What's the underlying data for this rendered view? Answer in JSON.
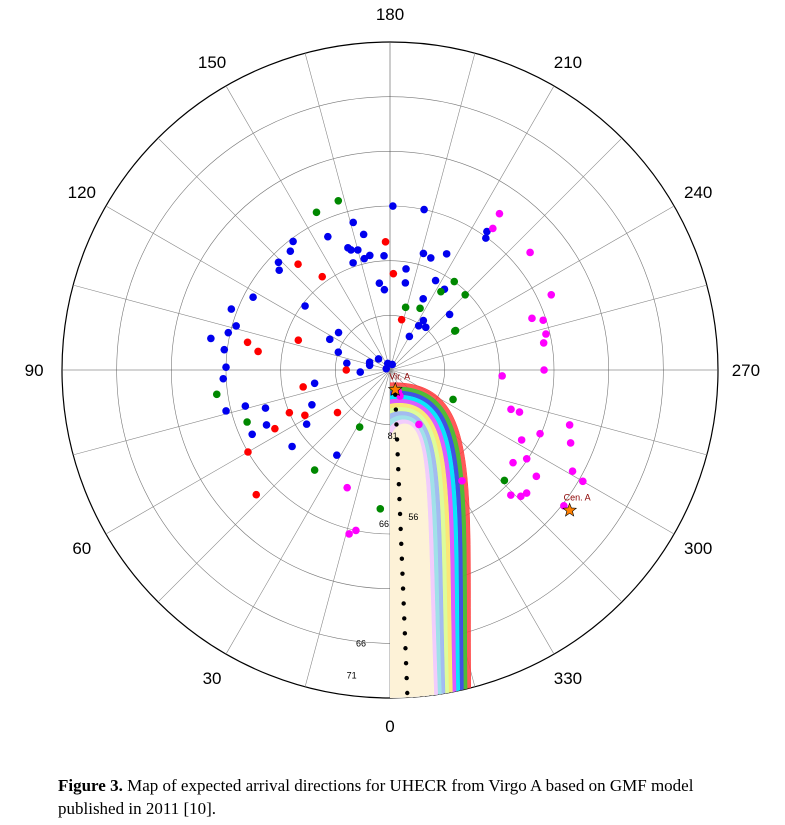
{
  "figure": {
    "caption_label": "Figure 3.",
    "caption_text": " Map of expected arrival directions for UHECR from Virgo A based on GMF model published in 2011 [10]."
  },
  "chart_data": {
    "type": "scatter",
    "coordinate_system": "polar",
    "angle_labels": [
      "0",
      "30",
      "60",
      "90",
      "120",
      "150",
      "180",
      "210",
      "240",
      "270",
      "300",
      "330"
    ],
    "angle_unit": "degrees",
    "radial_rings": 6,
    "radial_spokes_every_deg": 15,
    "grid": true,
    "series": [
      {
        "color": "#0000ee",
        "points": [
          [
            143,
            162
          ],
          [
            140,
            156
          ],
          [
            134,
            156
          ],
          [
            132,
            150
          ],
          [
            118,
            156
          ],
          [
            111,
            171
          ],
          [
            127,
            107
          ],
          [
            100,
            183
          ],
          [
            103,
            167
          ],
          [
            106,
            161
          ],
          [
            162,
            127
          ],
          [
            165,
            125
          ],
          [
            166,
            153
          ],
          [
            155,
            148
          ],
          [
            169,
            139
          ],
          [
            161,
            130
          ],
          [
            170,
            117
          ],
          [
            167,
            115
          ],
          [
            161,
            114
          ],
          [
            177,
            115
          ],
          [
            173,
            88
          ],
          [
            176,
            81
          ],
          [
            181,
            165
          ],
          [
            192,
            165
          ],
          [
            189,
            103
          ],
          [
            196,
            122
          ],
          [
            200,
            120
          ],
          [
            190,
            89
          ],
          [
            206,
            130
          ],
          [
            207,
            101
          ],
          [
            214,
            98
          ],
          [
            205,
            79
          ],
          [
            214,
            60
          ],
          [
            227,
            82
          ],
          [
            220,
            56
          ],
          [
            213,
            53
          ],
          [
            210,
            39
          ],
          [
            215,
            170
          ],
          [
            216,
            164
          ],
          [
            97,
            168
          ],
          [
            91,
            165
          ],
          [
            87,
            168
          ],
          [
            76,
            170
          ],
          [
            76,
            150
          ],
          [
            65,
            153
          ],
          [
            66,
            136
          ],
          [
            73,
            131
          ],
          [
            52,
            125
          ],
          [
            57,
            100
          ],
          [
            32,
            101
          ],
          [
            117,
            68
          ],
          [
            109,
            55
          ],
          [
            126,
            64
          ],
          [
            99,
            44
          ],
          [
            103,
            21
          ],
          [
            86,
            30
          ],
          [
            111,
            22
          ],
          [
            161,
            7
          ],
          [
            202,
            6
          ],
          [
            134,
            16
          ],
          [
            110,
            4
          ],
          [
            80,
            77
          ],
          [
            66,
            86
          ]
        ]
      },
      {
        "color": "#008800",
        "points": [
          [
            163,
            178
          ],
          [
            155,
            175
          ],
          [
            82,
            176
          ],
          [
            70,
            153
          ],
          [
            37,
            126
          ],
          [
            28,
            65
          ],
          [
            194,
            65
          ],
          [
            206,
            69
          ],
          [
            213,
            94
          ],
          [
            216,
            110
          ],
          [
            225,
            107
          ],
          [
            239,
            77
          ],
          [
            239,
            76
          ],
          [
            295,
            70
          ],
          [
            314,
            160
          ],
          [
            4,
            140
          ]
        ]
      },
      {
        "color": "#ff0000",
        "points": [
          [
            139,
            141
          ],
          [
            144,
            116
          ],
          [
            108,
            97
          ],
          [
            101,
            146
          ],
          [
            98,
            134
          ],
          [
            90,
            44
          ],
          [
            79,
            89
          ],
          [
            67,
            110
          ],
          [
            63,
            130
          ],
          [
            60,
            165
          ],
          [
            62,
            97
          ],
          [
            51,
            68
          ],
          [
            182,
            97
          ],
          [
            193,
            52
          ],
          [
            178,
            129
          ],
          [
            47,
            184
          ]
        ]
      },
      {
        "color": "#ff00ff",
        "points": [
          [
            14,
            170
          ],
          [
            12,
            165
          ],
          [
            20,
            126
          ],
          [
            270,
            155
          ],
          [
            273,
            113
          ],
          [
            288,
            128
          ],
          [
            288,
            137
          ],
          [
            298,
            150
          ],
          [
            307,
            155
          ],
          [
            303,
            164
          ],
          [
            293,
            164
          ],
          [
            306,
            182
          ],
          [
            287,
            189
          ],
          [
            314,
            183
          ],
          [
            312,
            185
          ],
          [
            292,
            196
          ],
          [
            299,
            210
          ],
          [
            300,
            224
          ],
          [
            308,
            222
          ],
          [
            316,
            175
          ],
          [
            332,
            62
          ],
          [
            339,
            28
          ],
          [
            339,
            23
          ],
          [
            341,
            25
          ],
          [
            327,
            133
          ],
          [
            216,
            176
          ],
          [
            215,
            192
          ],
          [
            230,
            184
          ],
          [
            252,
            162
          ],
          [
            260,
            157
          ],
          [
            257,
            161
          ],
          [
            250,
            152
          ],
          [
            245,
            179
          ]
        ]
      }
    ],
    "virgo_track": {
      "color": "#000000",
      "points": [
        [
          343,
          44
        ],
        [
          344,
          50
        ],
        [
          345,
          55
        ],
        [
          345,
          62
        ],
        [
          347,
          68
        ],
        [
          347,
          75
        ],
        [
          347,
          82
        ],
        [
          348,
          88
        ],
        [
          349,
          96
        ],
        [
          349,
          105
        ],
        [
          350,
          117
        ],
        [
          351,
          127
        ],
        [
          352,
          137
        ],
        [
          354,
          150
        ],
        [
          356,
          162
        ],
        [
          358,
          178
        ],
        [
          359,
          198
        ],
        [
          360,
          210
        ],
        [
          360,
          222
        ],
        [
          360,
          234
        ],
        [
          360,
          248
        ]
      ]
    },
    "markers": [
      {
        "label": "Vir. A",
        "angle": 345,
        "r": 0.062,
        "color": "#ff8000"
      },
      {
        "label": "Cen. A",
        "angle": 308,
        "r": 0.695,
        "color": "#ff8000"
      }
    ],
    "annotations": [
      {
        "text": "81",
        "angle": 2,
        "r": 0.21
      },
      {
        "text": "66",
        "angle": 4,
        "r": 0.48
      },
      {
        "text": "56",
        "angle": 353,
        "r": 0.46
      },
      {
        "text": "66",
        "angle": 7,
        "r": 0.85
      },
      {
        "text": "71",
        "angle": 8,
        "r": 0.95
      }
    ],
    "contour_colors": [
      "#ff3c3c",
      "#33cc33",
      "#4040ff",
      "#00ffff",
      "#ff44ff",
      "#ffff60",
      "#d8ffa0",
      "#99b0ff",
      "#a0e8e8",
      "#ffc8ff",
      "#fff8d0"
    ]
  }
}
